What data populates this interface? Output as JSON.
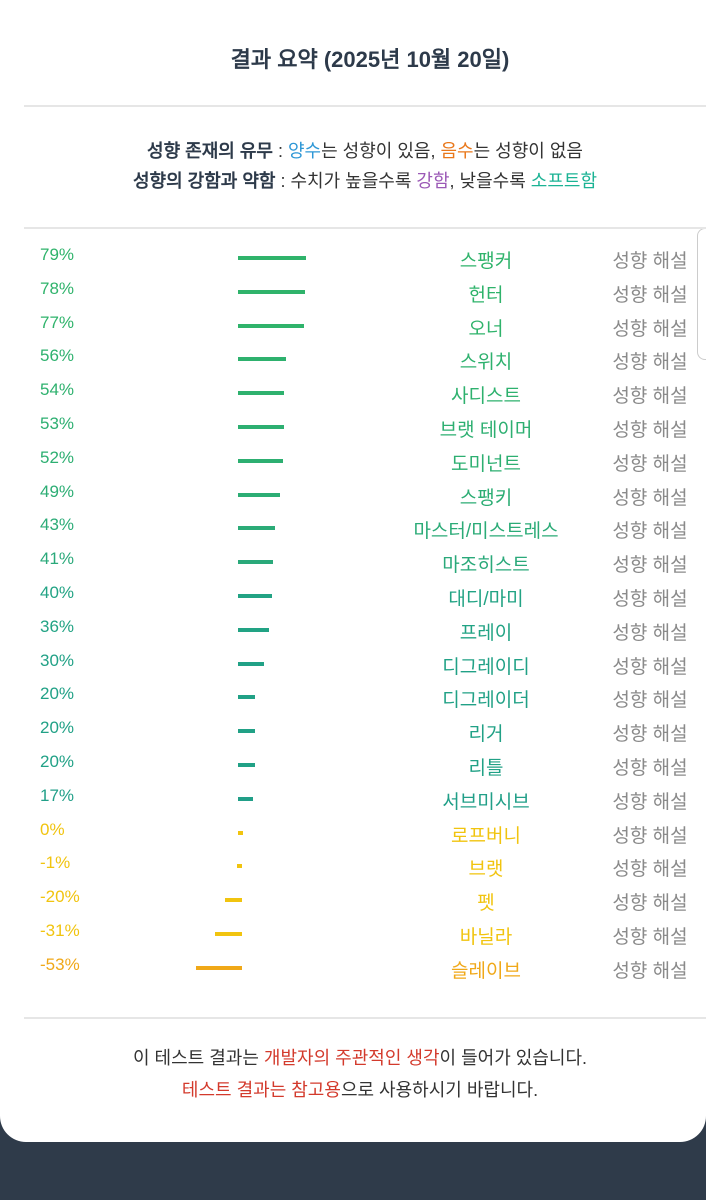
{
  "header": {
    "title": "결과 요약 (2025년 10월 20일)"
  },
  "legend": {
    "lines": [
      [
        "성향 존재의 유무",
        " : ",
        "양수",
        "는 성향이 있음, ",
        "음수",
        "는 성향이 없음"
      ],
      [
        "성향의 강함과 약함",
        " : 수치가 높을수록 ",
        "강함",
        ", 낮을수록 ",
        "소프트함"
      ]
    ]
  },
  "results": {
    "explain_label": "성향 해설",
    "rows": [
      {
        "value": 79,
        "value_label": "79%",
        "label": "스팽커",
        "color": "#2fb36b"
      },
      {
        "value": 78,
        "value_label": "78%",
        "label": "헌터",
        "color": "#2fb36b"
      },
      {
        "value": 77,
        "value_label": "77%",
        "label": "오너",
        "color": "#2fb36b"
      },
      {
        "value": 56,
        "value_label": "56%",
        "label": "스위치",
        "color": "#2eb16e"
      },
      {
        "value": 54,
        "value_label": "54%",
        "label": "사디스트",
        "color": "#2eb16e"
      },
      {
        "value": 53,
        "value_label": "53%",
        "label": "브랫 테이머",
        "color": "#2daf71"
      },
      {
        "value": 52,
        "value_label": "52%",
        "label": "도미넌트",
        "color": "#2daf71"
      },
      {
        "value": 49,
        "value_label": "49%",
        "label": "스팽키",
        "color": "#2cad74"
      },
      {
        "value": 43,
        "value_label": "43%",
        "label": "마스터/미스트레스",
        "color": "#2bab77"
      },
      {
        "value": 41,
        "value_label": "41%",
        "label": "마조히스트",
        "color": "#2aa97a"
      },
      {
        "value": 40,
        "value_label": "40%",
        "label": "대디/마미",
        "color": "#22a384"
      },
      {
        "value": 36,
        "value_label": "36%",
        "label": "프레이",
        "color": "#22a384"
      },
      {
        "value": 30,
        "value_label": "30%",
        "label": "디그레이디",
        "color": "#21a186"
      },
      {
        "value": 20,
        "value_label": "20%",
        "label": "디그레이더",
        "color": "#21a186"
      },
      {
        "value": 20,
        "value_label": "20%",
        "label": "리거",
        "color": "#21a186"
      },
      {
        "value": 20,
        "value_label": "20%",
        "label": "리틀",
        "color": "#21a186"
      },
      {
        "value": 17,
        "value_label": "17%",
        "label": "서브미시브",
        "color": "#219f88"
      },
      {
        "value": 0,
        "value_label": "0%",
        "label": "로프버니",
        "color": "#f1c40f"
      },
      {
        "value": -1,
        "value_label": "-1%",
        "label": "브랫",
        "color": "#f1c40f"
      },
      {
        "value": -20,
        "value_label": "-20%",
        "label": "펫",
        "color": "#f1c40f"
      },
      {
        "value": -31,
        "value_label": "-31%",
        "label": "바닐라",
        "color": "#f1c40f"
      },
      {
        "value": -53,
        "value_label": "-53%",
        "label": "슬레이브",
        "color": "#f0a818"
      }
    ]
  },
  "footer": {
    "lines": [
      [
        "이 테스트 결과는 ",
        "개발자의 주관적인 생각",
        "이 들어가 있습니다."
      ],
      [
        "테스트 결과는 참고용",
        "으로 사용하시기 바랍니다."
      ]
    ]
  }
}
